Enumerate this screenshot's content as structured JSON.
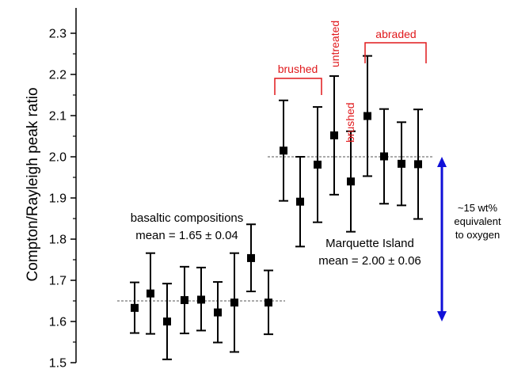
{
  "chart_data": {
    "type": "scatter",
    "ylabel": "Compton/Rayleigh peak ratio",
    "ylim": [
      1.5,
      2.35
    ],
    "yticks": [
      "1.5",
      "1.6",
      "1.7",
      "1.8",
      "1.9",
      "2.0",
      "2.1",
      "2.2",
      "2.3"
    ],
    "grid": false,
    "marker_color": "#000000",
    "groups": [
      {
        "label_line1": "basaltic compositions",
        "label_line2": "mean = 1.65 ± 0.04",
        "mean": 1.65,
        "points": [
          {
            "y": 1.633,
            "low": 1.572,
            "high": 1.695
          },
          {
            "y": 1.668,
            "low": 1.57,
            "high": 1.766
          },
          {
            "y": 1.6,
            "low": 1.508,
            "high": 1.692
          },
          {
            "y": 1.652,
            "low": 1.571,
            "high": 1.733
          },
          {
            "y": 1.653,
            "low": 1.578,
            "high": 1.731
          },
          {
            "y": 1.622,
            "low": 1.549,
            "high": 1.696
          },
          {
            "y": 1.646,
            "low": 1.526,
            "high": 1.766
          },
          {
            "y": 1.754,
            "low": 1.673,
            "high": 1.836
          },
          {
            "y": 1.646,
            "low": 1.569,
            "high": 1.724
          }
        ]
      },
      {
        "label_line1": "Marquette Island",
        "label_line2": "mean = 2.00 ± 0.06",
        "mean": 2.0,
        "points": [
          {
            "y": 2.015,
            "low": 1.893,
            "high": 2.137
          },
          {
            "y": 1.891,
            "low": 1.782,
            "high": 2.0
          },
          {
            "y": 1.981,
            "low": 1.841,
            "high": 2.121
          },
          {
            "y": 2.052,
            "low": 1.908,
            "high": 2.196
          },
          {
            "y": 1.94,
            "low": 1.818,
            "high": 2.062
          },
          {
            "y": 2.099,
            "low": 1.953,
            "high": 2.245
          },
          {
            "y": 2.001,
            "low": 1.886,
            "high": 2.116
          },
          {
            "y": 1.983,
            "low": 1.882,
            "high": 2.084
          },
          {
            "y": 1.982,
            "low": 1.849,
            "high": 2.115
          }
        ]
      }
    ],
    "annotations": {
      "color": "#e0191c",
      "brushed_1": "brushed",
      "untreated": "untreated",
      "brushed_2": "brushed",
      "abraded": "abraded"
    },
    "arrow": {
      "from": 1.6,
      "to": 2.0,
      "color": "#1010d8",
      "label_line1": "~15 wt%",
      "label_line2": "equivalent",
      "label_line3": "to oxygen"
    }
  }
}
